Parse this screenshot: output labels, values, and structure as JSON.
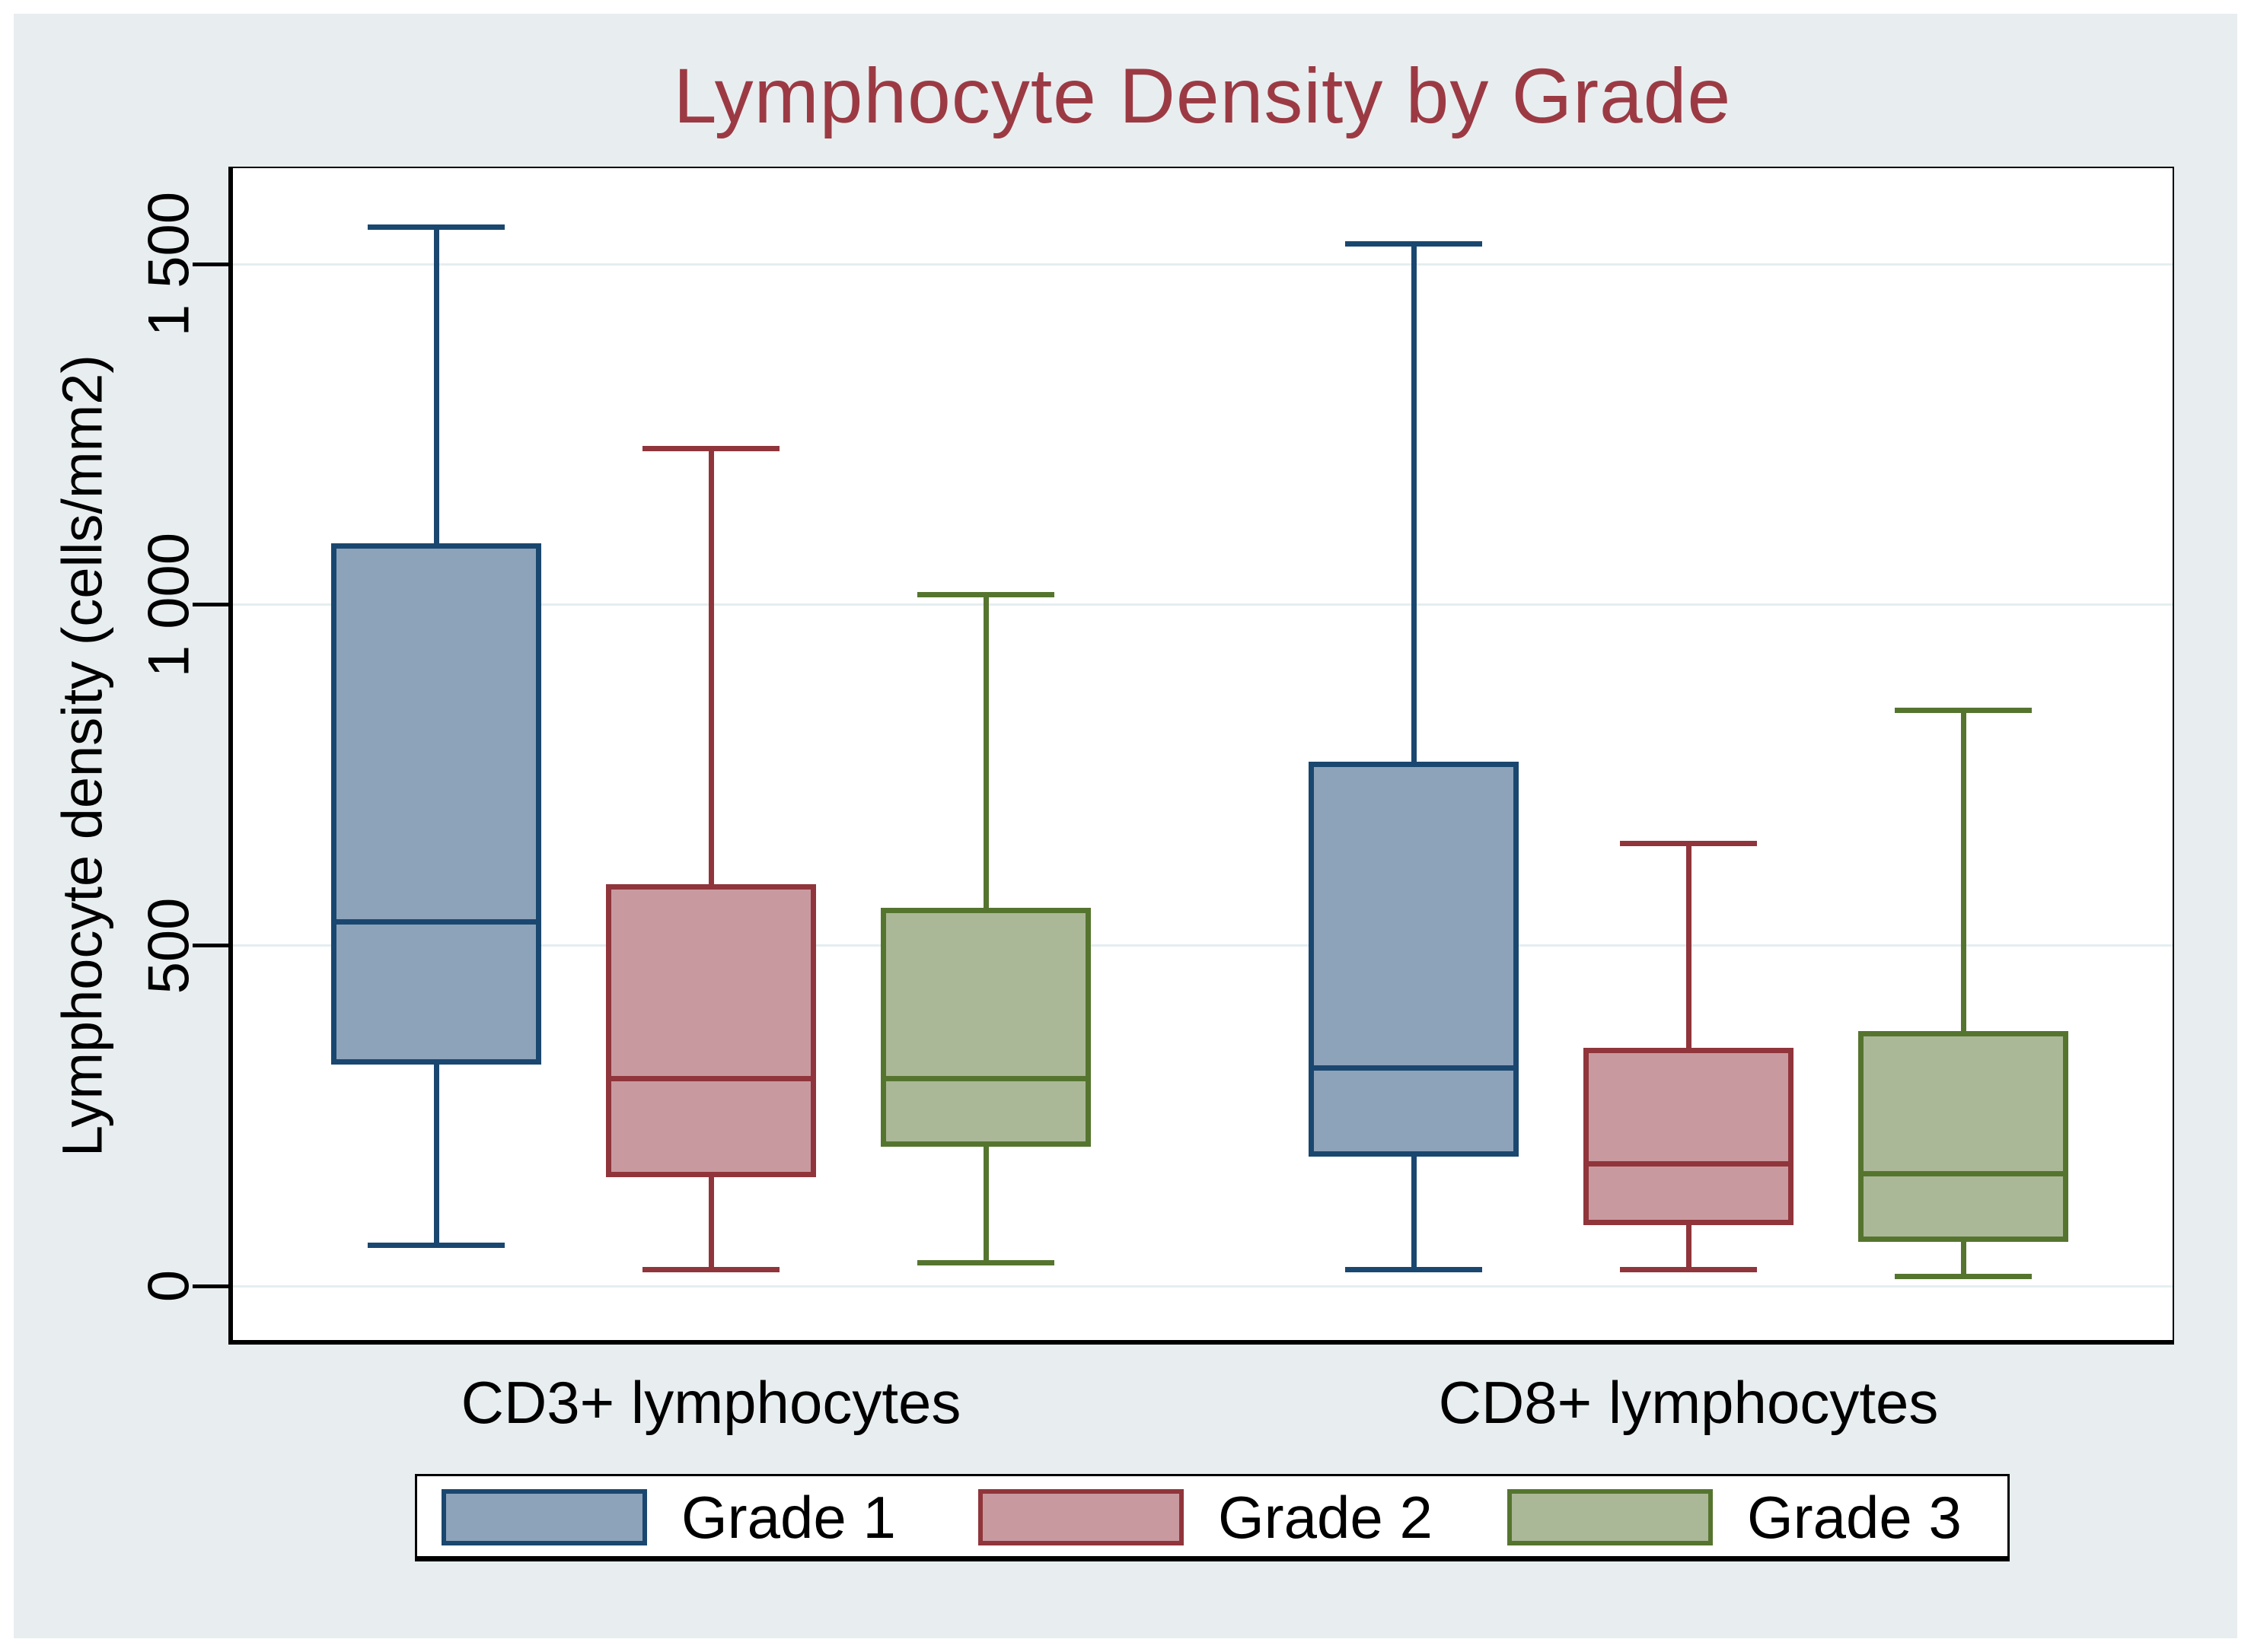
{
  "chart_data": {
    "type": "box",
    "title": "Lymphocyte Density by Grade",
    "ylabel": "Lymphocyte density (cells/mm2)",
    "ylim": [
      -81,
      1641
    ],
    "yticks": [
      0,
      500,
      1000,
      1500
    ],
    "ytick_labels": [
      "0",
      "500",
      "1 000",
      "1 500"
    ],
    "grid": true,
    "legend_position": "bottom",
    "groups": [
      "CD3+ lymphocytes",
      "CD8+ lymphocytes"
    ],
    "series": [
      {
        "name": "Grade 1",
        "line_color": "#1a476f",
        "fill_color": "#8da3ba",
        "boxes": [
          {
            "group": "CD3+ lymphocytes",
            "whisker_low": 60,
            "q1": 325,
            "median": 535,
            "q3": 1090,
            "whisker_high": 1555
          },
          {
            "group": "CD8+ lymphocytes",
            "whisker_low": 25,
            "q1": 190,
            "median": 320,
            "q3": 770,
            "whisker_high": 1530
          }
        ]
      },
      {
        "name": "Grade 2",
        "line_color": "#90353b",
        "fill_color": "#c89aa0",
        "boxes": [
          {
            "group": "CD3+ lymphocytes",
            "whisker_low": 25,
            "q1": 160,
            "median": 305,
            "q3": 590,
            "whisker_high": 1230
          },
          {
            "group": "CD8+ lymphocytes",
            "whisker_low": 25,
            "q1": 90,
            "median": 180,
            "q3": 350,
            "whisker_high": 650
          }
        ]
      },
      {
        "name": "Grade 3",
        "line_color": "#55752f",
        "fill_color": "#abb897",
        "boxes": [
          {
            "group": "CD3+ lymphocytes",
            "whisker_low": 35,
            "q1": 205,
            "median": 305,
            "q3": 555,
            "whisker_high": 1015
          },
          {
            "group": "CD8+ lymphocytes",
            "whisker_low": 15,
            "q1": 65,
            "median": 165,
            "q3": 375,
            "whisker_high": 845
          }
        ]
      }
    ],
    "colors": {
      "title": "#9c3a44",
      "background": "#e8eef0",
      "plot_background": "#ffffff",
      "gridline": "#e4eef0",
      "axis": "#000000"
    }
  }
}
